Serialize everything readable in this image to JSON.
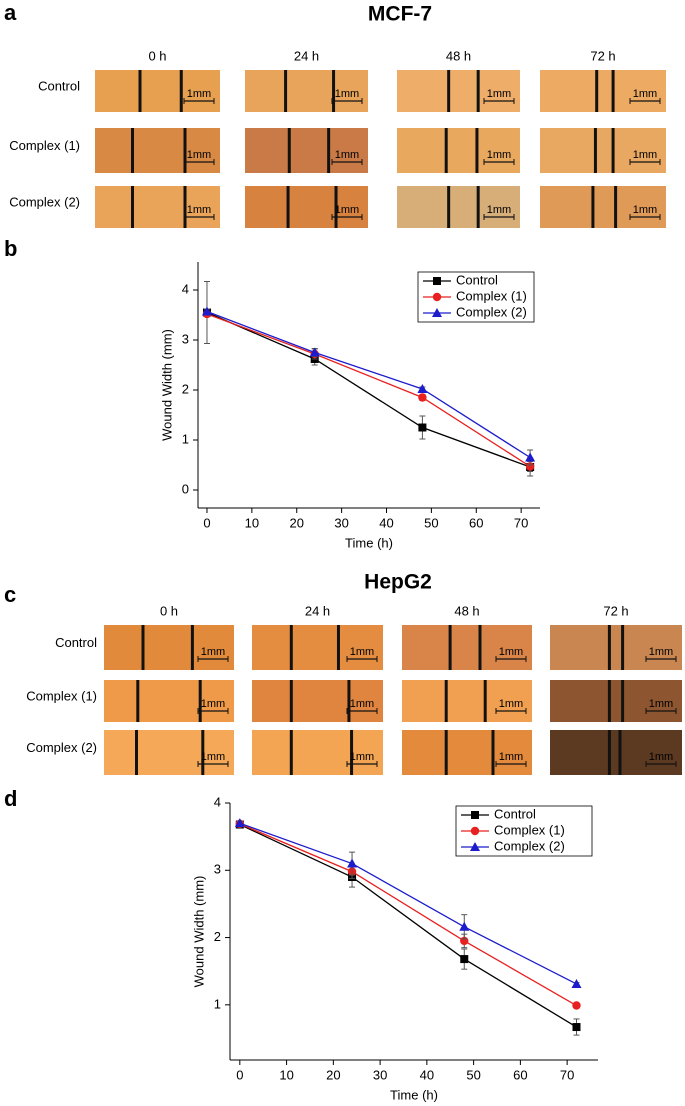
{
  "panel_a": {
    "label": "a",
    "title": "MCF-7",
    "columns": [
      "0 h",
      "24 h",
      "48 h",
      "72 h"
    ],
    "rows": [
      "Control",
      "Complex (1)",
      "Complex (2)"
    ],
    "scale_label": "1mm"
  },
  "panel_c": {
    "label": "c",
    "title": "HepG2",
    "columns": [
      "0 h",
      "24 h",
      "48 h",
      "72 h"
    ],
    "rows": [
      "Control",
      "Complex (1)",
      "Complex (2)"
    ],
    "scale_label": "1mm"
  },
  "chart_data": [
    {
      "type": "line",
      "label": "b",
      "x_label": "Time (h)",
      "y_label": "Wound Width (mm)",
      "legend": "upper right",
      "x": [
        0,
        24,
        48,
        72
      ],
      "xlim": [
        -2,
        74.2
      ],
      "xticks": [
        0,
        10,
        20,
        30,
        40,
        50,
        60,
        70
      ],
      "ylim": [
        -0.36,
        4.56
      ],
      "yticks": [
        0,
        1,
        2,
        3,
        4
      ],
      "series": [
        {
          "name": "Control",
          "color": "#000000",
          "marker": "square",
          "values": [
            3.55,
            2.62,
            1.25,
            0.46
          ],
          "errors": [
            0.62,
            0.12,
            0.23,
            0.18
          ]
        },
        {
          "name": "Complex (1)",
          "color": "#e8201f",
          "marker": "circle",
          "values": [
            3.52,
            2.72,
            1.85,
            0.47
          ],
          "errors": [
            0.05,
            0.1,
            0.06,
            0.1
          ]
        },
        {
          "name": "Complex (2)",
          "color": "#1c1ccc",
          "marker": "triangle",
          "values": [
            3.57,
            2.75,
            2.02,
            0.65
          ],
          "errors": [
            0.05,
            0.08,
            0.04,
            0.15
          ]
        }
      ]
    },
    {
      "type": "line",
      "label": "d",
      "x_label": "Time (h)",
      "y_label": "Wound Width (mm)",
      "legend": "upper right",
      "x": [
        0,
        24,
        48,
        72
      ],
      "xlim": [
        -2.1,
        76.6
      ],
      "xticks": [
        0,
        10,
        20,
        30,
        40,
        50,
        60,
        70
      ],
      "ylim": [
        0.18,
        4
      ],
      "yticks": [
        1,
        2,
        3,
        4
      ],
      "series": [
        {
          "name": "Control",
          "color": "#000000",
          "marker": "square",
          "values": [
            3.68,
            2.9,
            1.68,
            0.67
          ],
          "errors": [
            0.03,
            0.15,
            0.15,
            0.12
          ]
        },
        {
          "name": "Complex (1)",
          "color": "#e8201f",
          "marker": "circle",
          "values": [
            3.69,
            2.98,
            1.95,
            0.99
          ],
          "errors": [
            0.02,
            0.1,
            0.1,
            0.02
          ]
        },
        {
          "name": "Complex (2)",
          "color": "#1c1ccc",
          "marker": "triangle",
          "values": [
            3.7,
            3.1,
            2.16,
            1.31
          ],
          "errors": [
            0.02,
            0.17,
            0.18,
            0.02
          ]
        }
      ]
    }
  ]
}
